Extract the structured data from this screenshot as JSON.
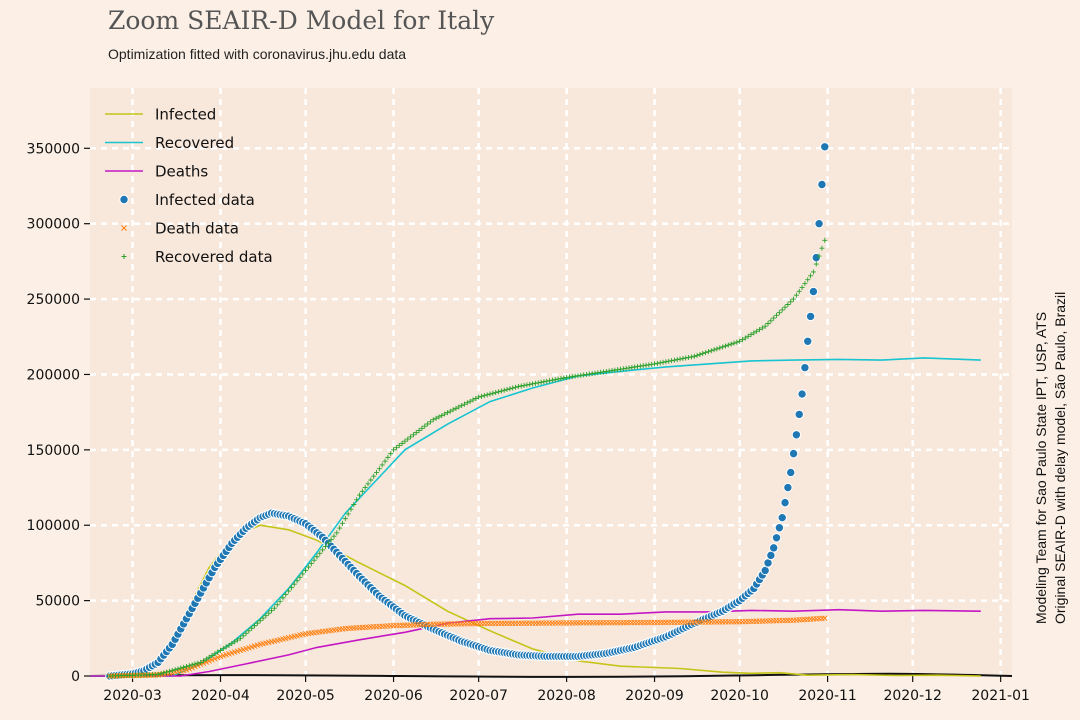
{
  "title": "Zoom SEAIR-D Model for Italy",
  "subtitle": "Optimization fitted with coronavirus.jhu.edu data",
  "side_note": {
    "line1": "Modeling Team for Sao Paulo State IPT, USP, ATS",
    "line2": "Original SEAIR-D with delay model, São Paulo, Brazil"
  },
  "colors": {
    "background": "#fcf0e6",
    "plot_background": "#f8e8dc",
    "grid": "#ffffff",
    "infected": "#c4c417",
    "recovered": "#17c4d0",
    "deaths": "#c417c4",
    "infected_data": "#1f77b4",
    "death_data": "#ff7f0e",
    "recovered_data": "#2ca02c"
  },
  "chart_data": {
    "type": "line",
    "title": "Zoom SEAIR-D Model for Italy",
    "subtitle": "Optimization fitted with coronavirus.jhu.edu data",
    "x_type": "date",
    "xlim": [
      "2020-02-15",
      "2021-01-05"
    ],
    "ylim": [
      0,
      390000
    ],
    "grid": true,
    "legend_position": "top-left",
    "x_ticks": [
      "2020-03",
      "2020-04",
      "2020-05",
      "2020-06",
      "2020-07",
      "2020-08",
      "2020-09",
      "2020-10",
      "2020-11",
      "2020-12",
      "2021-01"
    ],
    "y_ticks": [
      0,
      50000,
      100000,
      150000,
      200000,
      250000,
      300000,
      350000
    ],
    "series": [
      {
        "name": "Infected",
        "kind": "line",
        "color": "#c4c417",
        "points": [
          [
            "2020-02-15",
            0
          ],
          [
            "2020-03-01",
            800
          ],
          [
            "2020-03-10",
            9000
          ],
          [
            "2020-03-20",
            42000
          ],
          [
            "2020-03-28",
            72000
          ],
          [
            "2020-04-06",
            93000
          ],
          [
            "2020-04-15",
            100000
          ],
          [
            "2020-04-25",
            97000
          ],
          [
            "2020-05-05",
            90000
          ],
          [
            "2020-05-20",
            75000
          ],
          [
            "2020-06-05",
            60000
          ],
          [
            "2020-06-20",
            43000
          ],
          [
            "2020-07-05",
            30000
          ],
          [
            "2020-07-20",
            18000
          ],
          [
            "2020-08-05",
            10000
          ],
          [
            "2020-08-20",
            6500
          ],
          [
            "2020-09-10",
            5000
          ],
          [
            "2020-09-25",
            2500
          ],
          [
            "2020-10-05",
            1800
          ],
          [
            "2020-10-15",
            2200
          ],
          [
            "2020-10-25",
            500
          ],
          [
            "2020-11-10",
            1000
          ],
          [
            "2020-11-25",
            300
          ],
          [
            "2020-12-10",
            500
          ],
          [
            "2020-12-25",
            0
          ]
        ]
      },
      {
        "name": "Recovered",
        "kind": "line",
        "color": "#17c4d0",
        "points": [
          [
            "2020-02-15",
            0
          ],
          [
            "2020-03-15",
            0
          ],
          [
            "2020-03-25",
            8000
          ],
          [
            "2020-04-05",
            22000
          ],
          [
            "2020-04-15",
            38000
          ],
          [
            "2020-04-25",
            58000
          ],
          [
            "2020-05-05",
            82000
          ],
          [
            "2020-05-15",
            108000
          ],
          [
            "2020-05-25",
            128000
          ],
          [
            "2020-06-05",
            150000
          ],
          [
            "2020-06-20",
            167000
          ],
          [
            "2020-07-05",
            182000
          ],
          [
            "2020-07-20",
            191000
          ],
          [
            "2020-08-05",
            199000
          ],
          [
            "2020-08-20",
            202000
          ],
          [
            "2020-09-05",
            205000
          ],
          [
            "2020-09-20",
            207000
          ],
          [
            "2020-10-05",
            209000
          ],
          [
            "2020-10-20",
            209500
          ],
          [
            "2020-11-05",
            210000
          ],
          [
            "2020-11-20",
            209500
          ],
          [
            "2020-12-05",
            211000
          ],
          [
            "2020-12-25",
            209500
          ]
        ]
      },
      {
        "name": "Deaths",
        "kind": "line",
        "color": "#c417c4",
        "points": [
          [
            "2020-02-15",
            0
          ],
          [
            "2020-03-18",
            0
          ],
          [
            "2020-03-28",
            3000
          ],
          [
            "2020-04-10",
            8000
          ],
          [
            "2020-04-25",
            14000
          ],
          [
            "2020-05-05",
            19000
          ],
          [
            "2020-05-20",
            24000
          ],
          [
            "2020-06-05",
            29000
          ],
          [
            "2020-06-20",
            35000
          ],
          [
            "2020-07-05",
            38000
          ],
          [
            "2020-07-20",
            38500
          ],
          [
            "2020-08-05",
            41000
          ],
          [
            "2020-08-20",
            41000
          ],
          [
            "2020-09-05",
            42500
          ],
          [
            "2020-09-20",
            42500
          ],
          [
            "2020-10-05",
            43500
          ],
          [
            "2020-10-20",
            43000
          ],
          [
            "2020-11-05",
            44000
          ],
          [
            "2020-11-20",
            43000
          ],
          [
            "2020-12-05",
            43500
          ],
          [
            "2020-12-25",
            43000
          ]
        ]
      },
      {
        "name": "Infected data",
        "kind": "scatter",
        "marker": "circle",
        "color": "#1f77b4",
        "points": [
          [
            "2020-02-22",
            0
          ],
          [
            "2020-03-01",
            1500
          ],
          [
            "2020-03-05",
            3500
          ],
          [
            "2020-03-10",
            9000
          ],
          [
            "2020-03-15",
            21000
          ],
          [
            "2020-03-20",
            38000
          ],
          [
            "2020-03-25",
            55000
          ],
          [
            "2020-03-30",
            72000
          ],
          [
            "2020-04-05",
            88000
          ],
          [
            "2020-04-10",
            98000
          ],
          [
            "2020-04-15",
            105000
          ],
          [
            "2020-04-19",
            108000
          ],
          [
            "2020-04-25",
            106000
          ],
          [
            "2020-05-01",
            101000
          ],
          [
            "2020-05-07",
            92000
          ],
          [
            "2020-05-13",
            80000
          ],
          [
            "2020-05-20",
            66000
          ],
          [
            "2020-05-27",
            53000
          ],
          [
            "2020-06-05",
            40000
          ],
          [
            "2020-06-15",
            31000
          ],
          [
            "2020-06-25",
            23000
          ],
          [
            "2020-07-05",
            17000
          ],
          [
            "2020-07-15",
            14000
          ],
          [
            "2020-07-25",
            13000
          ],
          [
            "2020-08-05",
            13000
          ],
          [
            "2020-08-15",
            15000
          ],
          [
            "2020-08-25",
            19000
          ],
          [
            "2020-09-05",
            26000
          ],
          [
            "2020-09-15",
            35000
          ],
          [
            "2020-09-25",
            43000
          ],
          [
            "2020-10-01",
            50000
          ],
          [
            "2020-10-06",
            58000
          ],
          [
            "2020-10-10",
            70000
          ],
          [
            "2020-10-13",
            85000
          ],
          [
            "2020-10-16",
            105000
          ],
          [
            "2020-10-19",
            135000
          ],
          [
            "2020-10-21",
            160000
          ],
          [
            "2020-10-23",
            187000
          ],
          [
            "2020-10-25",
            222000
          ],
          [
            "2020-10-27",
            255000
          ],
          [
            "2020-10-29",
            300000
          ],
          [
            "2020-10-30",
            326000
          ],
          [
            "2020-10-31",
            351000
          ]
        ]
      },
      {
        "name": "Death data",
        "kind": "scatter",
        "marker": "x",
        "color": "#ff7f0e",
        "points": [
          [
            "2020-02-22",
            0
          ],
          [
            "2020-03-10",
            700
          ],
          [
            "2020-03-20",
            4000
          ],
          [
            "2020-04-01",
            13000
          ],
          [
            "2020-04-15",
            21000
          ],
          [
            "2020-05-01",
            28000
          ],
          [
            "2020-05-15",
            31500
          ],
          [
            "2020-06-01",
            33400
          ],
          [
            "2020-06-15",
            34300
          ],
          [
            "2020-07-01",
            34800
          ],
          [
            "2020-08-01",
            35200
          ],
          [
            "2020-09-01",
            35500
          ],
          [
            "2020-10-01",
            36000
          ],
          [
            "2020-10-20",
            37000
          ],
          [
            "2020-10-31",
            38300
          ]
        ]
      },
      {
        "name": "Recovered data",
        "kind": "scatter",
        "marker": "plus",
        "color": "#2ca02c",
        "points": [
          [
            "2020-02-22",
            0
          ],
          [
            "2020-03-10",
            1000
          ],
          [
            "2020-03-25",
            9000
          ],
          [
            "2020-04-08",
            25000
          ],
          [
            "2020-04-20",
            45000
          ],
          [
            "2020-05-01",
            70000
          ],
          [
            "2020-05-12",
            95000
          ],
          [
            "2020-05-20",
            120000
          ],
          [
            "2020-06-01",
            150000
          ],
          [
            "2020-06-15",
            170000
          ],
          [
            "2020-07-01",
            185000
          ],
          [
            "2020-07-15",
            192000
          ],
          [
            "2020-08-01",
            198000
          ],
          [
            "2020-08-15",
            202000
          ],
          [
            "2020-09-01",
            207000
          ],
          [
            "2020-09-15",
            212000
          ],
          [
            "2020-10-01",
            222000
          ],
          [
            "2020-10-10",
            232000
          ],
          [
            "2020-10-20",
            250000
          ],
          [
            "2020-10-27",
            268000
          ],
          [
            "2020-10-31",
            289000
          ]
        ]
      }
    ]
  }
}
